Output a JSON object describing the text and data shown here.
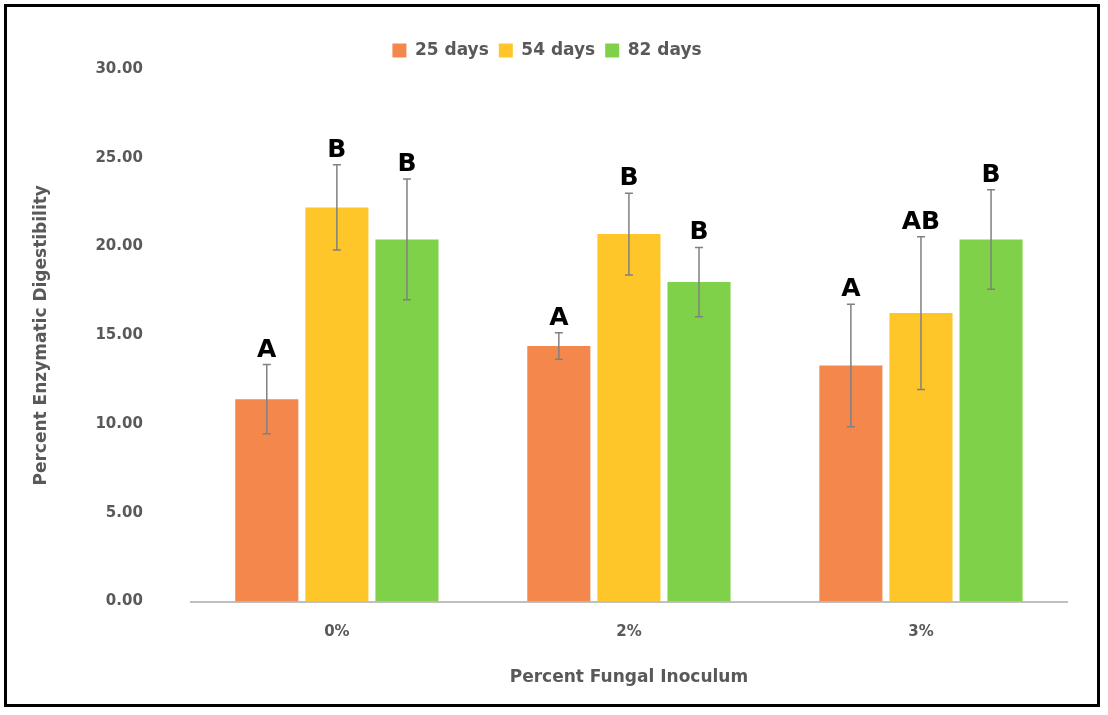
{
  "chart_data": {
    "type": "bar",
    "xlabel": "Percent Fungal Inoculum",
    "ylabel": "Percent Enzymatic Digestibility",
    "categories": [
      "0%",
      "2%",
      "3%"
    ],
    "series": [
      {
        "name": "25 days",
        "color": "#f4874b",
        "values": [
          11.4,
          14.4,
          13.3
        ],
        "errors": [
          1.95,
          0.75,
          3.45
        ]
      },
      {
        "name": "54 days",
        "color": "#ffc629",
        "values": [
          22.2,
          20.7,
          16.25
        ],
        "errors": [
          2.4,
          2.3,
          4.3
        ]
      },
      {
        "name": "82 days",
        "color": "#7fd14a",
        "values": [
          20.4,
          18.0,
          20.4
        ],
        "errors": [
          3.4,
          1.95,
          2.8
        ]
      }
    ],
    "ylim": [
      0,
      30
    ],
    "yticks": [
      {
        "value": 0,
        "label": "0.00"
      },
      {
        "value": 5,
        "label": "5.00"
      },
      {
        "value": 10,
        "label": "10.00"
      },
      {
        "value": 15,
        "label": "15.00"
      },
      {
        "value": 20,
        "label": "20.00"
      },
      {
        "value": 25,
        "label": "25.00"
      },
      {
        "value": 30,
        "label": "30.00"
      }
    ],
    "grid": false,
    "legend": "top",
    "annotations": [
      "A",
      "B",
      "B",
      "A",
      "B",
      "B",
      "A",
      "AB",
      "B"
    ]
  }
}
